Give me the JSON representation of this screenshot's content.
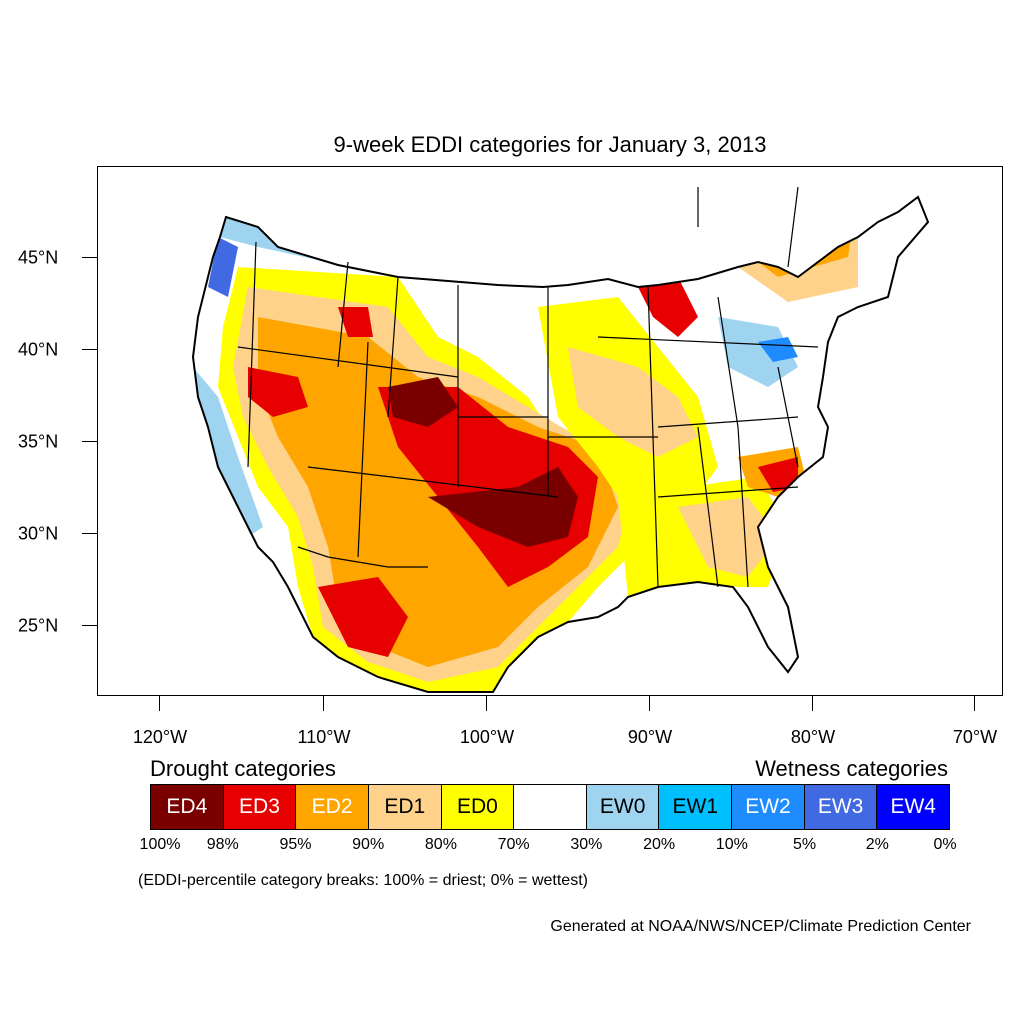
{
  "title": "9-week EDDI categories for January 3, 2013",
  "lat_labels": [
    "45°N",
    "40°N",
    "35°N",
    "30°N",
    "25°N"
  ],
  "lon_labels": [
    "120°W",
    "110°W",
    "100°W",
    "90°W",
    "80°W",
    "70°W"
  ],
  "legend": {
    "drought_title": "Drought categories",
    "wetness_title": "Wetness categories",
    "categories": [
      {
        "label": "ED4",
        "color": "#7a0000",
        "text_color": "#ffffff"
      },
      {
        "label": "ED3",
        "color": "#e60000",
        "text_color": "#ffffff"
      },
      {
        "label": "ED2",
        "color": "#ffa500",
        "text_color": "#ffffff"
      },
      {
        "label": "ED1",
        "color": "#fed28a",
        "text_color": "#000000"
      },
      {
        "label": "ED0",
        "color": "#ffff00",
        "text_color": "#000000"
      },
      {
        "label": "",
        "color": "#ffffff",
        "text_color": "#000000"
      },
      {
        "label": "EW0",
        "color": "#9fd4f0",
        "text_color": "#000000"
      },
      {
        "label": "EW1",
        "color": "#00bfff",
        "text_color": "#000000"
      },
      {
        "label": "EW2",
        "color": "#1e8cff",
        "text_color": "#ffffff"
      },
      {
        "label": "EW3",
        "color": "#4169e1",
        "text_color": "#ffffff"
      },
      {
        "label": "EW4",
        "color": "#0000ff",
        "text_color": "#ffffff"
      }
    ],
    "percent_breaks": [
      "100%",
      "98%",
      "95%",
      "90%",
      "80%",
      "70%",
      "30%",
      "20%",
      "10%",
      "5%",
      "2%",
      "0%"
    ]
  },
  "note": "(EDDI-percentile category breaks: 100% = driest; 0% = wettest)",
  "credit": "Generated at NOAA/NWS/NCEP/Climate Prediction Center"
}
